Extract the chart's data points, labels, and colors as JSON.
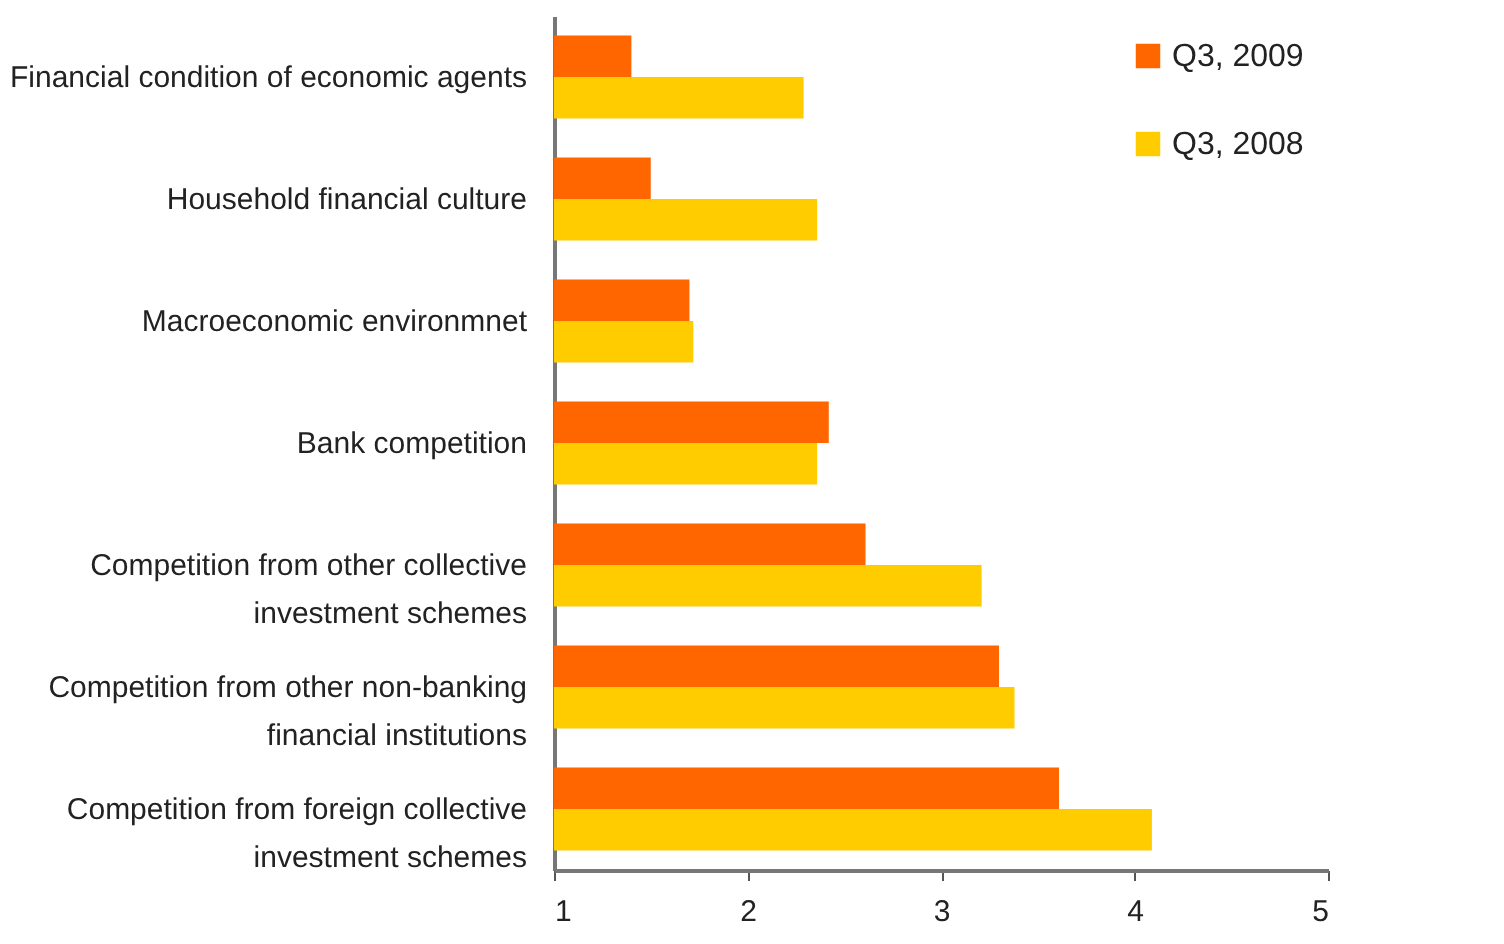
{
  "chart_data": {
    "type": "bar",
    "orientation": "horizontal",
    "categories": [
      "Financial condition of economic agents",
      "Household financial culture",
      "Macroeconomic environmnet",
      "Bank competition",
      "Competition from other collective investment schemes",
      "Competition from other non-banking financial institutions",
      "Competition from foreign collective investment schemes"
    ],
    "series": [
      {
        "name": "Q3, 2009",
        "color": "#ff6600",
        "values": [
          1.4,
          1.5,
          1.7,
          2.42,
          2.61,
          3.3,
          3.61
        ]
      },
      {
        "name": "Q3, 2008",
        "color": "#ffcc00",
        "values": [
          2.29,
          2.36,
          1.72,
          2.36,
          3.21,
          3.38,
          4.09
        ]
      }
    ],
    "xlim": [
      1,
      5
    ],
    "xticks": [
      1,
      2,
      3,
      4,
      5
    ],
    "legend": "top right",
    "grid": false
  }
}
